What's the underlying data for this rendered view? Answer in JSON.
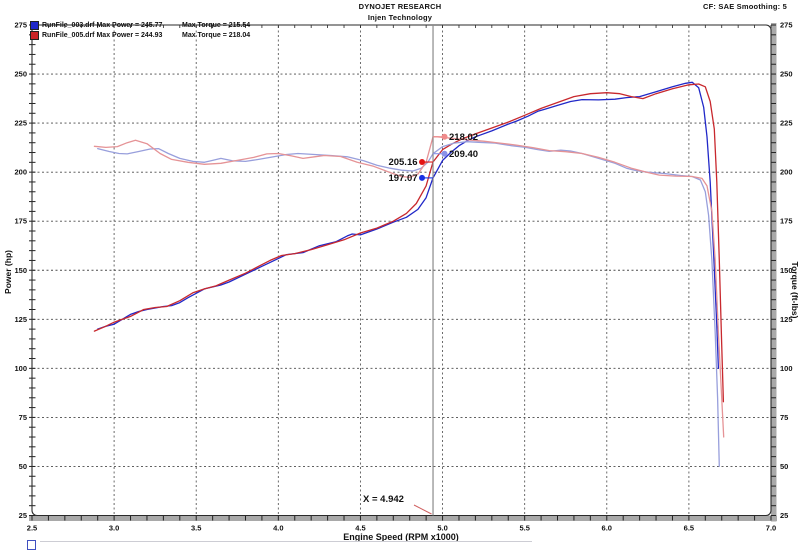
{
  "header": {
    "brand": "DYNOJET RESEARCH",
    "subtitle": "Injen Technology",
    "settings": "CF: SAE  Smoothing: 5"
  },
  "legend": {
    "runs": [
      {
        "file": "RunFile_003.drf",
        "power": "Max Power = 245.77",
        "torque": "Max Torque = 215.54",
        "color": "#1f27c9",
        "max_power": 245.77,
        "max_torque": 215.54
      },
      {
        "file": "RunFile_005.drf",
        "power": "Max Power = 244.93",
        "torque": "Max Torque = 218.04",
        "color": "#cb2428",
        "max_power": 244.93,
        "max_torque": 218.04
      }
    ]
  },
  "cursor": {
    "x_label": "X = 4.942",
    "x": 4.942,
    "readouts": [
      {
        "label": "218.02",
        "value": 218.02,
        "series": "RunFile_005.drf Torque",
        "color": "#ef8a8a",
        "side": "right"
      },
      {
        "label": "209.40",
        "value": 209.4,
        "series": "RunFile_003.drf Torque",
        "color": "#8a92e8",
        "side": "right"
      },
      {
        "label": "205.16",
        "value": 205.16,
        "series": "RunFile_005.drf Power",
        "color": "#e41414",
        "side": "left"
      },
      {
        "label": "197.07",
        "value": 197.07,
        "series": "RunFile_003.drf Power",
        "color": "#1830e4",
        "side": "left"
      }
    ]
  },
  "chart_data": {
    "type": "line",
    "title": "",
    "grid": "dashed",
    "legend_position": "top-left-inside",
    "x_axis": {
      "label": "Engine Speed (RPM x1000)",
      "min": 2.5,
      "max": 7.0,
      "minor_step": 0.1,
      "major_ticks": [
        2.5,
        3.0,
        3.5,
        4.0,
        4.5,
        5.0,
        5.5,
        6.0,
        6.5,
        7.0
      ],
      "tick_labels": [
        "2.5",
        "3.0",
        "3.5",
        "4.0",
        "4.5",
        "5.0",
        "5.5",
        "6.0",
        "6.5",
        "7.0"
      ]
    },
    "y_axis": {
      "label": "Power (hp)",
      "min": 25,
      "max": 275,
      "minor_step": 5,
      "major_ticks": [
        275,
        250,
        225,
        200,
        175,
        150,
        125,
        100,
        75,
        50,
        25
      ],
      "tick_labels": [
        "275",
        "250",
        "225",
        "200",
        "175",
        "150",
        "125",
        "100",
        "75",
        "50",
        "25"
      ]
    },
    "y2_axis": {
      "label": "Torque (ft-lbs)",
      "min": 25,
      "max": 275,
      "minor_step": 5,
      "major_ticks": [
        275,
        250,
        225,
        200,
        175,
        150,
        125,
        100,
        75,
        50,
        25
      ],
      "tick_labels": [
        "275",
        "250",
        "225",
        "200",
        "175",
        "150",
        "125",
        "100",
        "75",
        "50",
        "25"
      ]
    },
    "series": [
      {
        "name": "RunFile_003.drf Power",
        "unit": "hp",
        "color": "#2128c8",
        "points": [
          [
            2.9,
            120
          ],
          [
            2.95,
            121.5
          ],
          [
            3.0,
            122.5
          ],
          [
            3.05,
            125
          ],
          [
            3.1,
            127.5
          ],
          [
            3.15,
            129
          ],
          [
            3.2,
            130
          ],
          [
            3.3,
            131.5
          ],
          [
            3.35,
            132
          ],
          [
            3.4,
            133.5
          ],
          [
            3.45,
            136
          ],
          [
            3.55,
            140.5
          ],
          [
            3.65,
            142.5
          ],
          [
            3.7,
            144
          ],
          [
            3.8,
            148
          ],
          [
            3.9,
            152
          ],
          [
            3.95,
            154
          ],
          [
            4.05,
            158
          ],
          [
            4.15,
            159
          ],
          [
            4.25,
            162.5
          ],
          [
            4.35,
            164.5
          ],
          [
            4.42,
            167.5
          ],
          [
            4.45,
            168.5
          ],
          [
            4.5,
            168
          ],
          [
            4.6,
            171
          ],
          [
            4.7,
            174.5
          ],
          [
            4.78,
            177
          ],
          [
            4.85,
            181
          ],
          [
            4.9,
            187
          ],
          [
            4.942,
            197.07
          ],
          [
            5.0,
            206
          ],
          [
            5.05,
            210
          ],
          [
            5.1,
            213.5
          ],
          [
            5.15,
            216
          ],
          [
            5.2,
            218
          ],
          [
            5.3,
            221
          ],
          [
            5.4,
            224.5
          ],
          [
            5.45,
            226
          ],
          [
            5.52,
            228.5
          ],
          [
            5.58,
            231
          ],
          [
            5.62,
            232
          ],
          [
            5.7,
            234
          ],
          [
            5.78,
            236
          ],
          [
            5.85,
            237
          ],
          [
            5.95,
            236.8
          ],
          [
            6.05,
            237.2
          ],
          [
            6.12,
            238
          ],
          [
            6.2,
            238.5
          ],
          [
            6.3,
            241
          ],
          [
            6.4,
            243.5
          ],
          [
            6.48,
            245.3
          ],
          [
            6.52,
            245.77
          ],
          [
            6.56,
            243
          ],
          [
            6.59,
            233
          ],
          [
            6.61,
            218
          ],
          [
            6.63,
            195
          ],
          [
            6.65,
            160
          ],
          [
            6.67,
            122
          ],
          [
            6.68,
            100
          ]
        ]
      },
      {
        "name": "RunFile_005.drf Power",
        "unit": "hp",
        "color": "#c8282d",
        "points": [
          [
            2.88,
            119
          ],
          [
            2.95,
            121.5
          ],
          [
            3.0,
            123.5
          ],
          [
            3.05,
            125
          ],
          [
            3.1,
            126.5
          ],
          [
            3.18,
            130
          ],
          [
            3.25,
            131
          ],
          [
            3.32,
            131.5
          ],
          [
            3.4,
            134.5
          ],
          [
            3.48,
            138.5
          ],
          [
            3.55,
            140.5
          ],
          [
            3.62,
            142
          ],
          [
            3.7,
            145
          ],
          [
            3.8,
            148.5
          ],
          [
            3.88,
            152
          ],
          [
            3.95,
            155
          ],
          [
            4.02,
            157.5
          ],
          [
            4.1,
            158.5
          ],
          [
            4.2,
            160.5
          ],
          [
            4.3,
            163
          ],
          [
            4.4,
            165.5
          ],
          [
            4.5,
            169
          ],
          [
            4.6,
            171.5
          ],
          [
            4.7,
            175
          ],
          [
            4.78,
            179
          ],
          [
            4.84,
            184
          ],
          [
            4.9,
            193
          ],
          [
            4.942,
            205.16
          ],
          [
            5.0,
            211.5
          ],
          [
            5.06,
            214.5
          ],
          [
            5.12,
            217
          ],
          [
            5.2,
            219.5
          ],
          [
            5.3,
            222.5
          ],
          [
            5.4,
            225.5
          ],
          [
            5.5,
            229
          ],
          [
            5.6,
            232.5
          ],
          [
            5.7,
            235.5
          ],
          [
            5.8,
            238.5
          ],
          [
            5.9,
            240
          ],
          [
            6.0,
            240.5
          ],
          [
            6.08,
            240
          ],
          [
            6.15,
            238.5
          ],
          [
            6.22,
            237.5
          ],
          [
            6.3,
            240
          ],
          [
            6.4,
            242.5
          ],
          [
            6.5,
            244.5
          ],
          [
            6.56,
            244.93
          ],
          [
            6.6,
            243.5
          ],
          [
            6.63,
            236
          ],
          [
            6.655,
            222
          ],
          [
            6.67,
            195
          ],
          [
            6.685,
            155
          ],
          [
            6.7,
            112
          ],
          [
            6.71,
            83
          ]
        ]
      },
      {
        "name": "RunFile_003.drf Torque",
        "unit": "ft-lbs",
        "color": "#989fdc",
        "points": [
          [
            2.9,
            212
          ],
          [
            2.97,
            210.5
          ],
          [
            3.03,
            209.5
          ],
          [
            3.08,
            209.3
          ],
          [
            3.15,
            210.5
          ],
          [
            3.22,
            211.8
          ],
          [
            3.27,
            212
          ],
          [
            3.33,
            209.5
          ],
          [
            3.4,
            207
          ],
          [
            3.48,
            205.5
          ],
          [
            3.55,
            205
          ],
          [
            3.6,
            206
          ],
          [
            3.65,
            207
          ],
          [
            3.72,
            205.8
          ],
          [
            3.8,
            205.5
          ],
          [
            3.88,
            206.5
          ],
          [
            3.95,
            207.5
          ],
          [
            4.05,
            209
          ],
          [
            4.12,
            209.5
          ],
          [
            4.22,
            209
          ],
          [
            4.32,
            208.5
          ],
          [
            4.42,
            207.8
          ],
          [
            4.52,
            205.8
          ],
          [
            4.6,
            203.5
          ],
          [
            4.68,
            202
          ],
          [
            4.75,
            201
          ],
          [
            4.82,
            200.6
          ],
          [
            4.87,
            202
          ],
          [
            4.91,
            205
          ],
          [
            4.942,
            209.4
          ],
          [
            5.0,
            213
          ],
          [
            5.07,
            214.8
          ],
          [
            5.15,
            215.54
          ],
          [
            5.22,
            215.2
          ],
          [
            5.32,
            214.8
          ],
          [
            5.42,
            213.5
          ],
          [
            5.5,
            212.7
          ],
          [
            5.58,
            211.5
          ],
          [
            5.65,
            210.6
          ],
          [
            5.72,
            211.2
          ],
          [
            5.78,
            210.8
          ],
          [
            5.85,
            209.5
          ],
          [
            5.95,
            207
          ],
          [
            6.05,
            204.5
          ],
          [
            6.12,
            202
          ],
          [
            6.18,
            200.8
          ],
          [
            6.25,
            200
          ],
          [
            6.35,
            199.3
          ],
          [
            6.45,
            198.3
          ],
          [
            6.52,
            197.8
          ],
          [
            6.57,
            196
          ],
          [
            6.6,
            190
          ],
          [
            6.62,
            178
          ],
          [
            6.64,
            155
          ],
          [
            6.66,
            118
          ],
          [
            6.675,
            85
          ],
          [
            6.685,
            50
          ]
        ]
      },
      {
        "name": "RunFile_005.drf Torque",
        "unit": "ft-lbs",
        "color": "#e59396",
        "points": [
          [
            2.88,
            213.2
          ],
          [
            2.95,
            212.6
          ],
          [
            3.02,
            213
          ],
          [
            3.08,
            215
          ],
          [
            3.13,
            216.3
          ],
          [
            3.2,
            214.5
          ],
          [
            3.28,
            209.5
          ],
          [
            3.35,
            206.5
          ],
          [
            3.45,
            205
          ],
          [
            3.55,
            204
          ],
          [
            3.65,
            204.5
          ],
          [
            3.75,
            206
          ],
          [
            3.85,
            207.5
          ],
          [
            3.93,
            209.3
          ],
          [
            4.0,
            209.5
          ],
          [
            4.08,
            208.3
          ],
          [
            4.15,
            207
          ],
          [
            4.22,
            207.8
          ],
          [
            4.28,
            208.5
          ],
          [
            4.38,
            208
          ],
          [
            4.48,
            205
          ],
          [
            4.58,
            203
          ],
          [
            4.68,
            199.8
          ],
          [
            4.75,
            197.8
          ],
          [
            4.8,
            197.4
          ],
          [
            4.85,
            199
          ],
          [
            4.9,
            205
          ],
          [
            4.942,
            218.02
          ],
          [
            4.97,
            218.04
          ],
          [
            5.05,
            217.3
          ],
          [
            5.15,
            216.5
          ],
          [
            5.25,
            215.8
          ],
          [
            5.35,
            214.8
          ],
          [
            5.45,
            213.8
          ],
          [
            5.55,
            212.5
          ],
          [
            5.65,
            211
          ],
          [
            5.75,
            210.4
          ],
          [
            5.85,
            209.5
          ],
          [
            5.95,
            207.5
          ],
          [
            6.05,
            205
          ],
          [
            6.15,
            202
          ],
          [
            6.25,
            199.8
          ],
          [
            6.32,
            198.5
          ],
          [
            6.42,
            198
          ],
          [
            6.52,
            197.8
          ],
          [
            6.58,
            196.8
          ],
          [
            6.61,
            193
          ],
          [
            6.64,
            180
          ],
          [
            6.66,
            155
          ],
          [
            6.68,
            118
          ],
          [
            6.7,
            85
          ],
          [
            6.712,
            65
          ]
        ]
      }
    ]
  },
  "partial_legend_row": {
    "swatch_color": "#4050c0"
  }
}
